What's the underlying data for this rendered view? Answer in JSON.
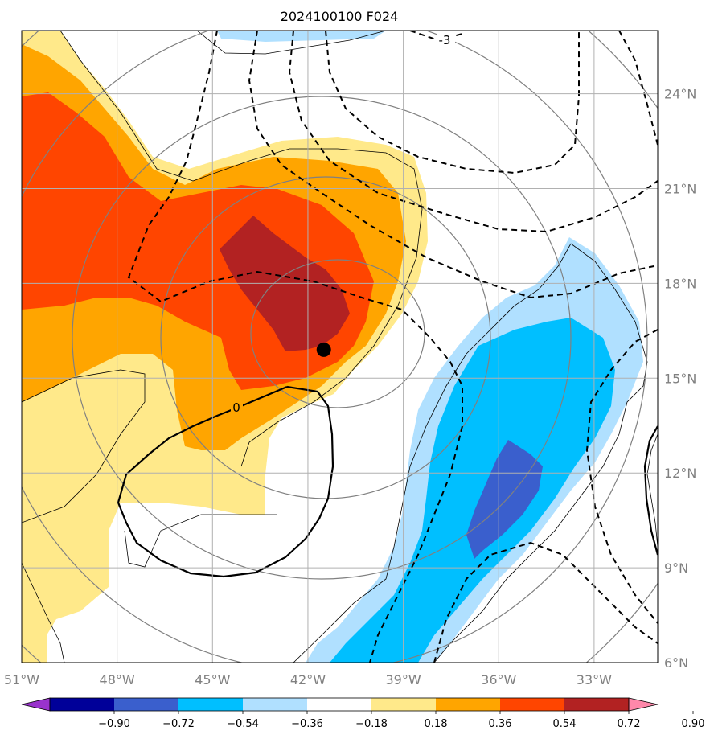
{
  "chart_data": {
    "type": "map-contour",
    "title": "2024100100 F024",
    "x_ticks": [
      "51°W",
      "48°W",
      "45°W",
      "42°W",
      "39°W",
      "36°W",
      "33°W"
    ],
    "y_ticks": [
      "24°N",
      "21°N",
      "18°N",
      "15°N",
      "12°N",
      "9°N",
      "6°N"
    ],
    "xlim_lon": [
      -51,
      -31
    ],
    "ylim_lat": [
      6,
      26
    ],
    "colorbar": {
      "ticks": [
        "−0.90",
        "−0.72",
        "−0.54",
        "−0.36",
        "−0.18",
        "0.18",
        "0.36",
        "0.54",
        "0.72",
        "0.90"
      ],
      "colors": [
        "#9933cc",
        "#000099",
        "#3a5fcd",
        "#00bfff",
        "#b0e0ff",
        "#ffffff",
        "#ffe98a",
        "#ffa500",
        "#ff4500",
        "#b22222",
        "#ff88aa"
      ]
    },
    "contour_labels": [
      "0",
      "-3"
    ],
    "marker": {
      "lon": -41.5,
      "lat": 15.9,
      "color": "#000000"
    },
    "grid": true
  }
}
